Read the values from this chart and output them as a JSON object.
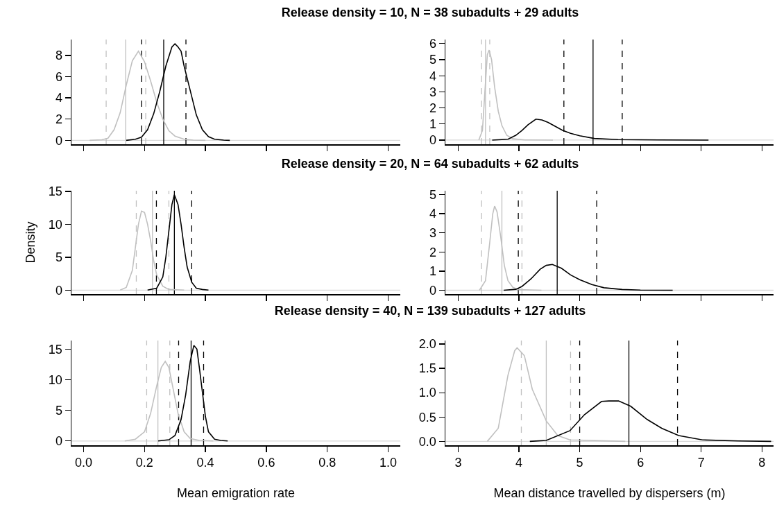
{
  "chart_data": [
    {
      "type": "line",
      "title": "Release density = 10, N = 38 subadults + 29 adults",
      "xlim": [
        -0.04,
        1.04
      ],
      "xticks": [
        0,
        0.2,
        0.4,
        0.6,
        0.8,
        1
      ],
      "ylim": [
        -0.37,
        9.5
      ],
      "yticks": [
        0,
        2,
        4,
        6,
        8
      ],
      "tick_labels": "y",
      "series": [
        {
          "color": "#c0c0c0",
          "x": [
            0.02,
            0.06,
            0.08,
            0.1,
            0.12,
            0.14,
            0.16,
            0.18,
            0.2,
            0.22,
            0.24,
            0.26,
            0.28,
            0.3,
            0.33,
            0.36,
            0.4
          ],
          "values": [
            0,
            0.05,
            0.2,
            1.0,
            2.6,
            5.2,
            7.5,
            8.4,
            7.4,
            5.6,
            3.6,
            2.0,
            0.9,
            0.4,
            0.1,
            0.02,
            0
          ]
        },
        {
          "color": "#000000",
          "x": [
            0.14,
            0.17,
            0.19,
            0.21,
            0.23,
            0.25,
            0.27,
            0.29,
            0.3,
            0.31,
            0.32,
            0.33,
            0.35,
            0.37,
            0.39,
            0.41,
            0.43,
            0.46,
            0.48
          ],
          "values": [
            0,
            0.1,
            0.3,
            1.0,
            2.5,
            4.6,
            7.0,
            8.8,
            9.1,
            8.8,
            8.4,
            7.0,
            4.7,
            2.4,
            1.0,
            0.35,
            0.1,
            0.02,
            0
          ]
        }
      ],
      "ref_lines": [
        {
          "axis": "y",
          "value": 0,
          "color": "#d9d9d9",
          "line_style": "solid"
        },
        {
          "axis": "x",
          "value": 0.074,
          "color": "#c0c0c0",
          "line_style": "dashed"
        },
        {
          "axis": "x",
          "value": 0.138,
          "color": "#c0c0c0",
          "line_style": "solid"
        },
        {
          "axis": "x",
          "value": 0.204,
          "color": "#c0c0c0",
          "line_style": "dashed"
        },
        {
          "axis": "x",
          "value": 0.19,
          "color": "#000000",
          "line_style": "dashed"
        },
        {
          "axis": "x",
          "value": 0.263,
          "color": "#000000",
          "line_style": "solid"
        },
        {
          "axis": "x",
          "value": 0.336,
          "color": "#000000",
          "line_style": "dashed"
        }
      ]
    },
    {
      "type": "line",
      "xlim": [
        2.79,
        8.19
      ],
      "xticks": [
        3,
        4,
        5,
        6,
        7,
        8
      ],
      "ylim": [
        -0.26,
        6.25
      ],
      "yticks": [
        0,
        1,
        2,
        3,
        4,
        5,
        6
      ],
      "tick_labels": "y",
      "series": [
        {
          "color": "#c0c0c0",
          "x": [
            3.34,
            3.4,
            3.44,
            3.48,
            3.51,
            3.55,
            3.6,
            3.66,
            3.72,
            3.8,
            3.9,
            4.1,
            4.56
          ],
          "values": [
            0,
            0.6,
            3.0,
            5.3,
            5.6,
            5.0,
            3.3,
            1.8,
            0.9,
            0.3,
            0.08,
            0.01,
            0
          ]
        },
        {
          "color": "#000000",
          "x": [
            3.56,
            3.82,
            3.95,
            4.05,
            4.15,
            4.28,
            4.38,
            4.48,
            4.6,
            4.72,
            4.85,
            5.0,
            5.24,
            5.63,
            6.3,
            7.12
          ],
          "values": [
            0,
            0.05,
            0.3,
            0.6,
            0.95,
            1.3,
            1.25,
            1.1,
            0.85,
            0.6,
            0.42,
            0.27,
            0.1,
            0.03,
            0.01,
            0
          ]
        }
      ],
      "ref_lines": [
        {
          "axis": "y",
          "value": 0,
          "color": "#d9d9d9",
          "line_style": "solid"
        },
        {
          "axis": "x",
          "value": 3.385,
          "color": "#c0c0c0",
          "line_style": "dashed"
        },
        {
          "axis": "x",
          "value": 3.45,
          "color": "#c0c0c0",
          "line_style": "solid"
        },
        {
          "axis": "x",
          "value": 3.52,
          "color": "#c0c0c0",
          "line_style": "dashed"
        },
        {
          "axis": "x",
          "value": 4.74,
          "color": "#000000",
          "line_style": "dashed"
        },
        {
          "axis": "x",
          "value": 5.22,
          "color": "#000000",
          "line_style": "solid"
        },
        {
          "axis": "x",
          "value": 5.7,
          "color": "#000000",
          "line_style": "dashed"
        }
      ]
    },
    {
      "type": "line",
      "title": "Release density = 20, N = 64 subadults + 62 adults",
      "ylabel": "Density",
      "xlim": [
        -0.04,
        1.04
      ],
      "xticks": [
        0,
        0.2,
        0.4,
        0.6,
        0.8,
        1
      ],
      "ylim": [
        -0.6,
        15.1
      ],
      "yticks": [
        0,
        5,
        10,
        15
      ],
      "tick_labels": "y",
      "series": [
        {
          "color": "#c0c0c0",
          "x": [
            0.12,
            0.14,
            0.16,
            0.17,
            0.18,
            0.19,
            0.2,
            0.21,
            0.22,
            0.23,
            0.24,
            0.26,
            0.28,
            0.33
          ],
          "values": [
            0,
            0.4,
            3.0,
            6.5,
            10,
            12,
            11.8,
            10,
            7.5,
            4.5,
            2.3,
            0.6,
            0.1,
            0
          ]
        },
        {
          "color": "#000000",
          "x": [
            0.21,
            0.24,
            0.26,
            0.27,
            0.28,
            0.29,
            0.298,
            0.31,
            0.32,
            0.33,
            0.34,
            0.355,
            0.37,
            0.39,
            0.41
          ],
          "values": [
            0,
            0.3,
            2.0,
            5.0,
            9.0,
            13,
            14.5,
            13,
            10,
            6.5,
            3.5,
            1.2,
            0.3,
            0.1,
            0
          ]
        }
      ],
      "ref_lines": [
        {
          "axis": "y",
          "value": 0,
          "color": "#d9d9d9",
          "line_style": "solid"
        },
        {
          "axis": "x",
          "value": 0.173,
          "color": "#c0c0c0",
          "line_style": "dashed"
        },
        {
          "axis": "x",
          "value": 0.226,
          "color": "#c0c0c0",
          "line_style": "solid"
        },
        {
          "axis": "x",
          "value": 0.28,
          "color": "#c0c0c0",
          "line_style": "dashed"
        },
        {
          "axis": "x",
          "value": 0.239,
          "color": "#000000",
          "line_style": "dashed"
        },
        {
          "axis": "x",
          "value": 0.298,
          "color": "#000000",
          "line_style": "solid"
        },
        {
          "axis": "x",
          "value": 0.355,
          "color": "#000000",
          "line_style": "dashed"
        }
      ]
    },
    {
      "type": "line",
      "xlim": [
        2.79,
        8.19
      ],
      "xticks": [
        3,
        4,
        5,
        6,
        7,
        8
      ],
      "ylim": [
        -0.2,
        5.2
      ],
      "yticks": [
        0,
        1,
        2,
        3,
        4,
        5
      ],
      "tick_labels": "y",
      "series": [
        {
          "color": "#c0c0c0",
          "x": [
            3.35,
            3.45,
            3.52,
            3.57,
            3.6,
            3.64,
            3.7,
            3.76,
            3.82,
            3.9,
            4.0,
            4.37
          ],
          "values": [
            0,
            0.5,
            2.5,
            4.0,
            4.4,
            4.1,
            2.8,
            1.3,
            0.5,
            0.15,
            0.03,
            0
          ]
        },
        {
          "color": "#000000",
          "x": [
            3.75,
            3.95,
            4.05,
            4.2,
            4.35,
            4.45,
            4.55,
            4.7,
            4.85,
            5.0,
            5.2,
            5.4,
            5.7,
            6.0,
            6.53
          ],
          "values": [
            0,
            0.05,
            0.2,
            0.6,
            1.1,
            1.3,
            1.35,
            1.15,
            0.8,
            0.55,
            0.3,
            0.13,
            0.04,
            0.01,
            0
          ]
        }
      ],
      "ref_lines": [
        {
          "axis": "y",
          "value": 0,
          "color": "#d9d9d9",
          "line_style": "solid"
        },
        {
          "axis": "x",
          "value": 3.385,
          "color": "#c0c0c0",
          "line_style": "dashed"
        },
        {
          "axis": "x",
          "value": 3.72,
          "color": "#c0c0c0",
          "line_style": "solid"
        },
        {
          "axis": "x",
          "value": 4.05,
          "color": "#c0c0c0",
          "line_style": "dashed"
        },
        {
          "axis": "x",
          "value": 3.99,
          "color": "#000000",
          "line_style": "dashed"
        },
        {
          "axis": "x",
          "value": 4.63,
          "color": "#000000",
          "line_style": "solid"
        },
        {
          "axis": "x",
          "value": 5.28,
          "color": "#000000",
          "line_style": "dashed"
        }
      ]
    },
    {
      "type": "line",
      "title": "Release density = 40, N = 139 subadults + 127 adults",
      "xlabel": "Mean emigration rate",
      "xlim": [
        -0.04,
        1.04
      ],
      "xticks": [
        {
          "value": 0,
          "label": "0.0"
        },
        {
          "value": 0.2,
          "label": "0.2"
        },
        {
          "value": 0.4,
          "label": "0.4"
        },
        {
          "value": 0.6,
          "label": "0.6"
        },
        {
          "value": 0.8,
          "label": "0.8"
        },
        {
          "value": 1,
          "label": "1.0"
        }
      ],
      "ylim": [
        -0.7,
        16.4
      ],
      "yticks": [
        0,
        5,
        10,
        15
      ],
      "series": [
        {
          "color": "#c0c0c0",
          "x": [
            0.135,
            0.17,
            0.2,
            0.22,
            0.24,
            0.255,
            0.268,
            0.28,
            0.29,
            0.3,
            0.31,
            0.33,
            0.35,
            0.38,
            0.426
          ],
          "values": [
            0,
            0.3,
            1.5,
            4.5,
            9.0,
            12,
            13,
            12,
            9.5,
            7,
            4.5,
            1.5,
            0.4,
            0.1,
            0
          ]
        },
        {
          "color": "#000000",
          "x": [
            0.245,
            0.28,
            0.3,
            0.32,
            0.335,
            0.35,
            0.362,
            0.372,
            0.38,
            0.39,
            0.4,
            0.41,
            0.43,
            0.45,
            0.473
          ],
          "values": [
            0,
            0.2,
            0.9,
            3.5,
            7.5,
            13,
            15.6,
            15,
            12,
            8,
            4.0,
            1.5,
            0.3,
            0.1,
            0
          ]
        }
      ],
      "ref_lines": [
        {
          "axis": "y",
          "value": 0,
          "color": "#d9d9d9",
          "line_style": "solid"
        },
        {
          "axis": "x",
          "value": 0.207,
          "color": "#c0c0c0",
          "line_style": "dashed"
        },
        {
          "axis": "x",
          "value": 0.244,
          "color": "#c0c0c0",
          "line_style": "solid"
        },
        {
          "axis": "x",
          "value": 0.283,
          "color": "#c0c0c0",
          "line_style": "dashed"
        },
        {
          "axis": "x",
          "value": 0.312,
          "color": "#000000",
          "line_style": "dashed"
        },
        {
          "axis": "x",
          "value": 0.353,
          "color": "#000000",
          "line_style": "solid"
        },
        {
          "axis": "x",
          "value": 0.394,
          "color": "#000000",
          "line_style": "dashed"
        }
      ]
    },
    {
      "type": "line",
      "xlabel": "Mean distance travelled by dispersers (m)",
      "xlim": [
        2.79,
        8.19
      ],
      "xticks": [
        3,
        4,
        5,
        6,
        7,
        8
      ],
      "ylim": [
        -0.08,
        2.07
      ],
      "yticks": [
        {
          "value": 0,
          "label": "0.0"
        },
        {
          "value": 0.5,
          "label": "0.5"
        },
        {
          "value": 1,
          "label": "1.0"
        },
        {
          "value": 1.5,
          "label": "1.5"
        },
        {
          "value": 2,
          "label": "2.0"
        }
      ],
      "series": [
        {
          "color": "#c0c0c0",
          "x": [
            3.48,
            3.66,
            3.82,
            3.93,
            3.97,
            4.09,
            4.22,
            4.45,
            4.64,
            4.84,
            5.75
          ],
          "values": [
            0,
            0.27,
            1.36,
            1.86,
            1.92,
            1.76,
            1.07,
            0.42,
            0.12,
            0.03,
            0
          ]
        },
        {
          "color": "#000000",
          "x": [
            4.18,
            4.45,
            4.84,
            5.08,
            5.36,
            5.48,
            5.64,
            5.84,
            6.11,
            6.35,
            6.63,
            7.02,
            7.61,
            8.15
          ],
          "values": [
            0,
            0.02,
            0.22,
            0.55,
            0.82,
            0.83,
            0.83,
            0.72,
            0.45,
            0.27,
            0.12,
            0.03,
            0.01,
            0
          ]
        }
      ],
      "ref_lines": [
        {
          "axis": "y",
          "value": 0,
          "color": "#d9d9d9",
          "line_style": "solid"
        },
        {
          "axis": "x",
          "value": 4.04,
          "color": "#c0c0c0",
          "line_style": "dashed"
        },
        {
          "axis": "x",
          "value": 4.45,
          "color": "#c0c0c0",
          "line_style": "solid"
        },
        {
          "axis": "x",
          "value": 4.85,
          "color": "#c0c0c0",
          "line_style": "dashed"
        },
        {
          "axis": "x",
          "value": 5.0,
          "color": "#000000",
          "line_style": "dashed"
        },
        {
          "axis": "x",
          "value": 5.81,
          "color": "#000000",
          "line_style": "solid"
        },
        {
          "axis": "x",
          "value": 6.61,
          "color": "#000000",
          "line_style": "dashed"
        }
      ]
    }
  ]
}
